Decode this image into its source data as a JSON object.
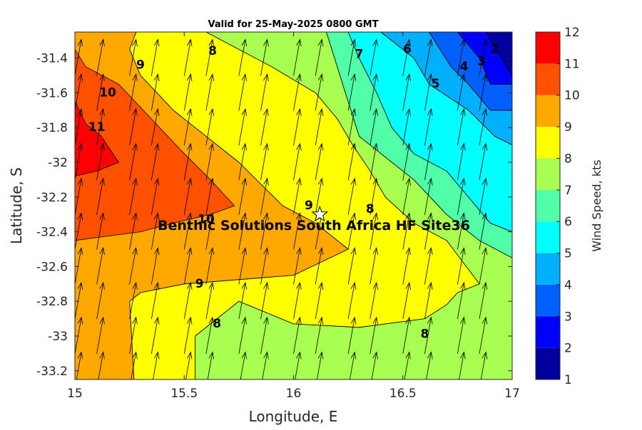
{
  "chart_data": {
    "type": "contour",
    "title": "Valid for 25-May-2025 0800 GMT",
    "xlabel": "Longitude, E",
    "ylabel": "Latitude, S",
    "xlim": [
      15,
      17
    ],
    "ylim": [
      -33.25,
      -31.25
    ],
    "xticks": [
      15,
      15.5,
      16,
      16.5,
      17
    ],
    "yticks": [
      -33.2,
      -33,
      -32.8,
      -32.6,
      -32.4,
      -32.2,
      -32,
      -31.8,
      -31.6,
      -31.4
    ],
    "colorbar": {
      "label": "Wind Speed, kts",
      "min": 1,
      "max": 12,
      "ticks": [
        1,
        2,
        3,
        4,
        5,
        6,
        7,
        8,
        9,
        10,
        11,
        12
      ],
      "levels": [
        {
          "from": 1,
          "to": 2,
          "color": "#00009f"
        },
        {
          "from": 2,
          "to": 3,
          "color": "#0000ff"
        },
        {
          "from": 3,
          "to": 4,
          "color": "#005fff"
        },
        {
          "from": 4,
          "to": 5,
          "color": "#00b0ff"
        },
        {
          "from": 5,
          "to": 6,
          "color": "#00ffff"
        },
        {
          "from": 6,
          "to": 7,
          "color": "#50ffa8"
        },
        {
          "from": 7,
          "to": 8,
          "color": "#a8ff50"
        },
        {
          "from": 8,
          "to": 9,
          "color": "#ffff00"
        },
        {
          "from": 9,
          "to": 10,
          "color": "#ffa800"
        },
        {
          "from": 10,
          "to": 11,
          "color": "#ff5000"
        },
        {
          "from": 11,
          "to": 12,
          "color": "#ff0000"
        }
      ]
    },
    "regions": [
      {
        "level": 2,
        "color": "#0000ff",
        "polygon": [
          [
            16.75,
            -31.25
          ],
          [
            17,
            -31.25
          ],
          [
            17,
            -31.55
          ],
          [
            16.9,
            -31.55
          ],
          [
            16.85,
            -31.4
          ]
        ]
      },
      {
        "level": 1,
        "color": "#00009f",
        "polygon": [
          [
            16.88,
            -31.25
          ],
          [
            17,
            -31.25
          ],
          [
            17,
            -31.5
          ],
          [
            16.95,
            -31.4
          ]
        ]
      },
      {
        "level": 3,
        "color": "#005fff",
        "polygon": [
          [
            16.62,
            -31.25
          ],
          [
            16.75,
            -31.25
          ],
          [
            16.85,
            -31.4
          ],
          [
            16.9,
            -31.55
          ],
          [
            17,
            -31.55
          ],
          [
            17,
            -31.7
          ],
          [
            16.9,
            -31.7
          ],
          [
            16.8,
            -31.55
          ],
          [
            16.72,
            -31.45
          ]
        ]
      },
      {
        "level": 4,
        "color": "#00b0ff",
        "polygon": [
          [
            16.4,
            -31.25
          ],
          [
            16.62,
            -31.25
          ],
          [
            16.72,
            -31.45
          ],
          [
            16.8,
            -31.55
          ],
          [
            16.9,
            -31.7
          ],
          [
            17,
            -31.7
          ],
          [
            17,
            -31.9
          ],
          [
            16.92,
            -31.85
          ],
          [
            16.8,
            -31.7
          ],
          [
            16.62,
            -31.55
          ],
          [
            16.55,
            -31.4
          ]
        ]
      },
      {
        "level": 5,
        "color": "#00ffff",
        "polygon": [
          [
            16.25,
            -31.25
          ],
          [
            16.4,
            -31.25
          ],
          [
            16.55,
            -31.4
          ],
          [
            16.62,
            -31.55
          ],
          [
            16.8,
            -31.7
          ],
          [
            16.92,
            -31.85
          ],
          [
            17,
            -31.9
          ],
          [
            17,
            -32.4
          ],
          [
            16.9,
            -32.35
          ],
          [
            16.8,
            -32.2
          ],
          [
            16.7,
            -32.05
          ],
          [
            16.55,
            -31.95
          ],
          [
            16.45,
            -31.8
          ],
          [
            16.38,
            -31.6
          ],
          [
            16.3,
            -31.4
          ]
        ]
      },
      {
        "level": 6,
        "color": "#50ffa8",
        "polygon": [
          [
            16.15,
            -31.25
          ],
          [
            16.25,
            -31.25
          ],
          [
            16.3,
            -31.4
          ],
          [
            16.38,
            -31.6
          ],
          [
            16.45,
            -31.8
          ],
          [
            16.55,
            -31.95
          ],
          [
            16.7,
            -32.05
          ],
          [
            16.8,
            -32.2
          ],
          [
            16.9,
            -32.35
          ],
          [
            17,
            -32.4
          ],
          [
            17,
            -32.55
          ],
          [
            16.85,
            -32.45
          ],
          [
            16.7,
            -32.3
          ],
          [
            16.55,
            -32.1
          ],
          [
            16.4,
            -31.95
          ],
          [
            16.3,
            -31.85
          ],
          [
            16.25,
            -31.65
          ],
          [
            16.2,
            -31.45
          ]
        ]
      },
      {
        "level": 8,
        "color": "#ffff00",
        "polygon": [
          [
            15.28,
            -31.25
          ],
          [
            15.6,
            -31.25
          ],
          [
            15.9,
            -31.45
          ],
          [
            16.1,
            -31.6
          ],
          [
            16.2,
            -31.75
          ],
          [
            16.27,
            -31.9
          ],
          [
            16.35,
            -32.05
          ],
          [
            16.42,
            -32.2
          ],
          [
            16.55,
            -32.35
          ],
          [
            16.7,
            -32.45
          ],
          [
            16.85,
            -32.7
          ],
          [
            16.75,
            -32.75
          ],
          [
            16.7,
            -32.82
          ],
          [
            16.6,
            -32.9
          ],
          [
            16.3,
            -32.95
          ],
          [
            16.0,
            -32.93
          ],
          [
            15.75,
            -32.8
          ],
          [
            15.55,
            -33.0
          ],
          [
            15.55,
            -33.25
          ],
          [
            15.27,
            -33.25
          ],
          [
            15.25,
            -32.8
          ],
          [
            15.3,
            -32.75
          ],
          [
            15.5,
            -32.7
          ],
          [
            16.0,
            -32.65
          ],
          [
            16.25,
            -32.5
          ],
          [
            16.2,
            -32.45
          ],
          [
            16.1,
            -32.35
          ],
          [
            15.95,
            -32.25
          ],
          [
            15.75,
            -32.0
          ],
          [
            15.6,
            -31.85
          ],
          [
            15.45,
            -31.7
          ],
          [
            15.3,
            -31.5
          ],
          [
            15.25,
            -31.35
          ]
        ]
      },
      {
        "level": 9,
        "color": "#ffa800",
        "polygon": [
          [
            15,
            -31.25
          ],
          [
            15.28,
            -31.25
          ],
          [
            15.25,
            -31.35
          ],
          [
            15.3,
            -31.5
          ],
          [
            15.45,
            -31.7
          ],
          [
            15.6,
            -31.85
          ],
          [
            15.75,
            -32.0
          ],
          [
            15.95,
            -32.25
          ],
          [
            16.1,
            -32.35
          ],
          [
            16.2,
            -32.45
          ],
          [
            16.25,
            -32.5
          ],
          [
            16.0,
            -32.65
          ],
          [
            15.5,
            -32.7
          ],
          [
            15.3,
            -32.75
          ],
          [
            15.25,
            -32.8
          ],
          [
            15.27,
            -33.25
          ],
          [
            15,
            -33.25
          ]
        ]
      },
      {
        "level": 10,
        "color": "#ff5000",
        "polygon": [
          [
            15,
            -31.35
          ],
          [
            15.05,
            -31.45
          ],
          [
            15.2,
            -31.55
          ],
          [
            15.35,
            -31.75
          ],
          [
            15.5,
            -31.95
          ],
          [
            15.62,
            -32.1
          ],
          [
            15.73,
            -32.25
          ],
          [
            15.62,
            -32.3
          ],
          [
            15.45,
            -32.35
          ],
          [
            15.3,
            -32.4
          ],
          [
            15.0,
            -32.45
          ]
        ]
      },
      {
        "level": 11,
        "color": "#ff0000",
        "polygon": [
          [
            15,
            -31.65
          ],
          [
            15.05,
            -31.78
          ],
          [
            15.12,
            -31.85
          ],
          [
            15.2,
            -32.0
          ],
          [
            15.1,
            -32.05
          ],
          [
            15.0,
            -32.08
          ]
        ]
      },
      {
        "level": 7,
        "color": "#a8ff50",
        "polygon": [
          [
            15.55,
            -33.25
          ],
          [
            15.55,
            -33.0
          ],
          [
            15.75,
            -32.8
          ],
          [
            16.0,
            -32.93
          ],
          [
            16.3,
            -32.95
          ],
          [
            16.6,
            -32.9
          ],
          [
            16.7,
            -32.82
          ],
          [
            16.75,
            -32.75
          ],
          [
            16.85,
            -32.7
          ],
          [
            16.7,
            -32.45
          ],
          [
            16.55,
            -32.35
          ],
          [
            16.42,
            -32.2
          ],
          [
            16.35,
            -32.05
          ],
          [
            16.27,
            -31.9
          ],
          [
            16.2,
            -31.75
          ],
          [
            16.1,
            -31.6
          ],
          [
            15.9,
            -31.45
          ],
          [
            15.6,
            -31.25
          ],
          [
            16.15,
            -31.25
          ],
          [
            16.2,
            -31.45
          ],
          [
            16.25,
            -31.65
          ],
          [
            16.3,
            -31.85
          ],
          [
            16.4,
            -31.95
          ],
          [
            16.55,
            -32.1
          ],
          [
            16.7,
            -32.3
          ],
          [
            16.85,
            -32.45
          ],
          [
            17,
            -32.55
          ],
          [
            17,
            -33.25
          ]
        ]
      }
    ],
    "contour_labels": [
      {
        "text": "2",
        "x": 16.92,
        "y": -31.35
      },
      {
        "text": "3",
        "x": 16.86,
        "y": -31.42
      },
      {
        "text": "4",
        "x": 16.78,
        "y": -31.45
      },
      {
        "text": "5",
        "x": 16.65,
        "y": -31.55
      },
      {
        "text": "6",
        "x": 16.52,
        "y": -31.35
      },
      {
        "text": "7",
        "x": 16.3,
        "y": -31.38
      },
      {
        "text": "8",
        "x": 15.63,
        "y": -31.36
      },
      {
        "text": "9",
        "x": 15.3,
        "y": -31.44
      },
      {
        "text": "10",
        "x": 15.15,
        "y": -31.6
      },
      {
        "text": "11",
        "x": 15.1,
        "y": -31.8
      },
      {
        "text": "9",
        "x": 16.07,
        "y": -32.25
      },
      {
        "text": "8",
        "x": 16.35,
        "y": -32.27
      },
      {
        "text": "10",
        "x": 15.6,
        "y": -32.33
      },
      {
        "text": "9",
        "x": 15.57,
        "y": -32.7
      },
      {
        "text": "8",
        "x": 15.65,
        "y": -32.93
      },
      {
        "text": "8",
        "x": 16.6,
        "y": -32.99
      }
    ],
    "site": {
      "label": "Benthic Solutions South Africa HF Site36",
      "x": 16.12,
      "y": -32.3
    },
    "wind_arrows": {
      "x": [
        15.0,
        15.1,
        15.25,
        15.35,
        15.5,
        15.6,
        15.75,
        15.85,
        16.0,
        16.1,
        16.25,
        16.35,
        16.5,
        16.6,
        16.75,
        16.85,
        17.0
      ],
      "y": [
        -33.2,
        -33.0,
        -32.8,
        -32.6,
        -32.4,
        -32.2,
        -32.0,
        -31.8,
        -31.6,
        -31.4
      ],
      "direction_deg": 10,
      "scale_note": "arrow length proportional to speed"
    }
  }
}
